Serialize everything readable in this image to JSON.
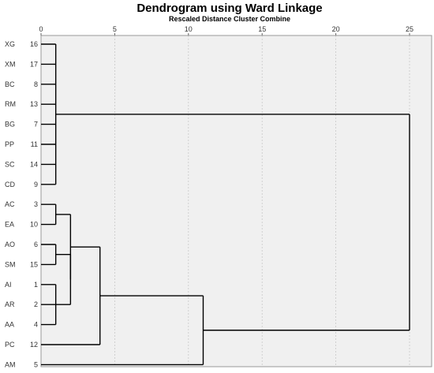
{
  "title": "Dendrogram using Ward Linkage",
  "subtitle": "Rescaled Distance Cluster Combine",
  "axis": {
    "min": 0,
    "max": 25,
    "ticks": [
      0,
      5,
      10,
      15,
      20,
      25
    ]
  },
  "leaves": [
    {
      "name": "XG",
      "id": "16"
    },
    {
      "name": "XM",
      "id": "17"
    },
    {
      "name": "BC",
      "id": "8"
    },
    {
      "name": "RM",
      "id": "13"
    },
    {
      "name": "BG",
      "id": "7"
    },
    {
      "name": "PP",
      "id": "11"
    },
    {
      "name": "SC",
      "id": "14"
    },
    {
      "name": "CD",
      "id": "9"
    },
    {
      "name": "AC",
      "id": "3"
    },
    {
      "name": "EA",
      "id": "10"
    },
    {
      "name": "AO",
      "id": "6"
    },
    {
      "name": "SM",
      "id": "15"
    },
    {
      "name": "AI",
      "id": "1"
    },
    {
      "name": "AR",
      "id": "2"
    },
    {
      "name": "AA",
      "id": "4"
    },
    {
      "name": "PC",
      "id": "12"
    },
    {
      "name": "AM",
      "id": "5"
    }
  ],
  "merges": [
    {
      "children": [
        "L0",
        "L1",
        "L2",
        "L3",
        "L4",
        "L5",
        "L6",
        "L7"
      ],
      "height": 1,
      "id": "C1"
    },
    {
      "children": [
        "L8",
        "L9"
      ],
      "height": 1,
      "id": "C2"
    },
    {
      "children": [
        "L10",
        "L11"
      ],
      "height": 1,
      "id": "C3"
    },
    {
      "children": [
        "L12",
        "L13",
        "L14"
      ],
      "height": 1,
      "id": "C4"
    },
    {
      "children": [
        "C3",
        "C4"
      ],
      "height": 2,
      "id": "C5"
    },
    {
      "children": [
        "C2",
        "C5"
      ],
      "height": 2,
      "id": "C6"
    },
    {
      "children": [
        "C6",
        "L15"
      ],
      "height": 4,
      "id": "C7"
    },
    {
      "children": [
        "C7",
        "L16"
      ],
      "height": 11,
      "id": "C8"
    },
    {
      "children": [
        "C1",
        "C8"
      ],
      "height": 25,
      "id": "C9"
    }
  ]
}
